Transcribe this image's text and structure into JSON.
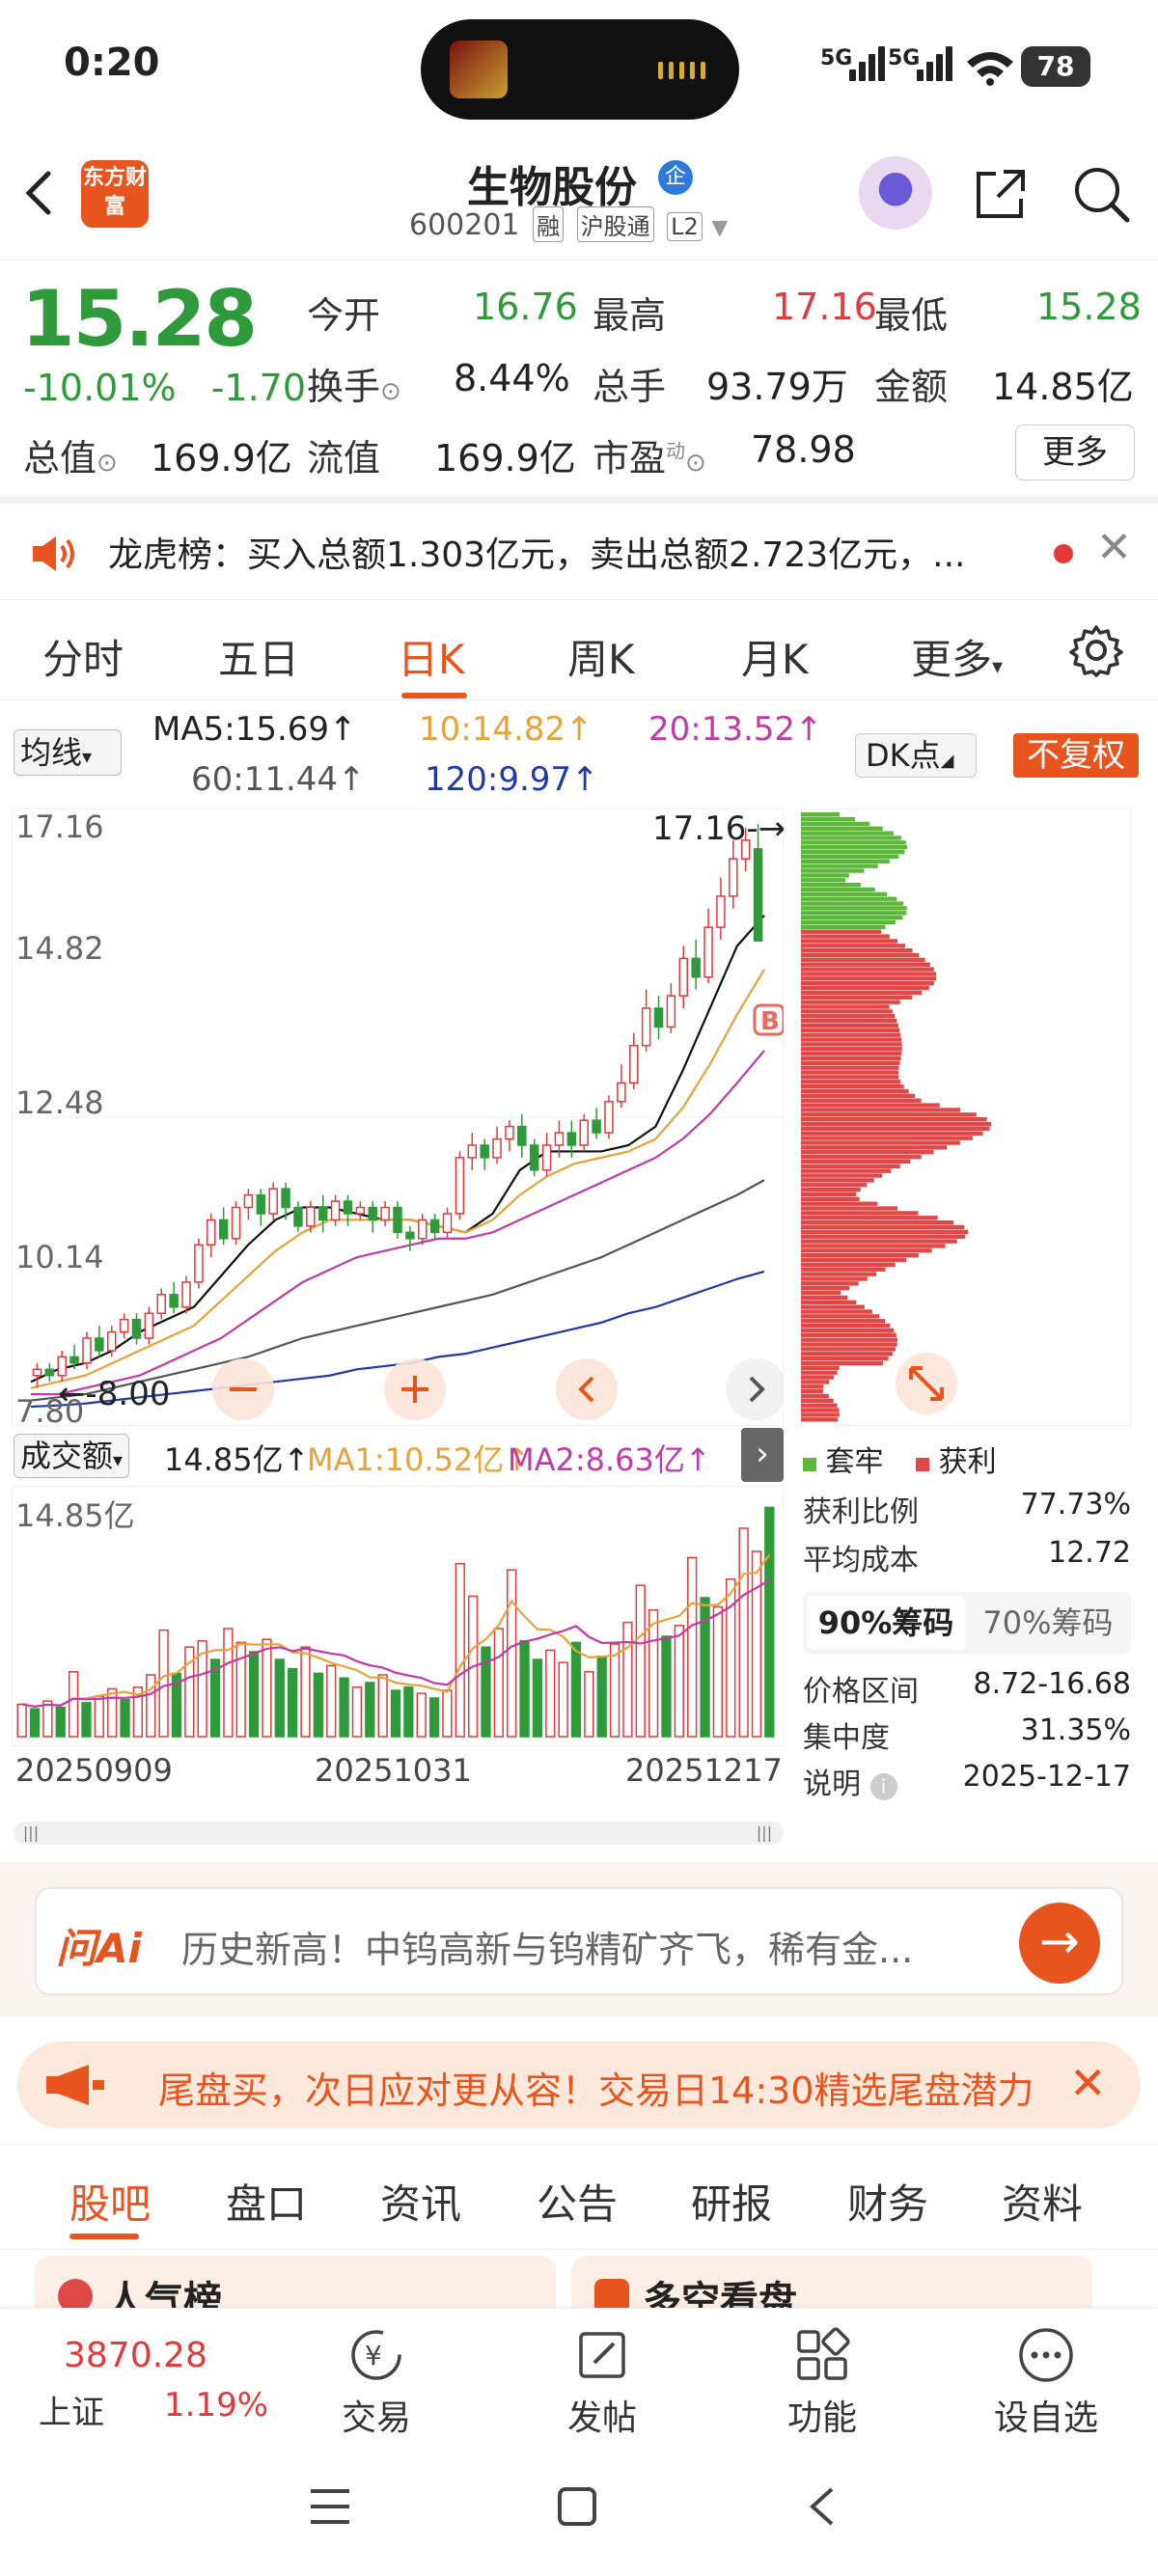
{
  "status_bar": {
    "time": "0:20",
    "signal1": "5G",
    "signal2": "5G",
    "battery": "78"
  },
  "header": {
    "app_logo": "东方财富",
    "stock_name": "生物股份",
    "stock_badge": "企",
    "code": "600201",
    "tags": [
      "融",
      "沪股通",
      "L2"
    ]
  },
  "quote": {
    "price": "15.28",
    "change_pct": "-10.01%",
    "change": "-1.70",
    "rows": [
      [
        {
          "l": "今开",
          "v": "16.76",
          "c": "green"
        },
        {
          "l": "最高",
          "v": "17.16",
          "c": "red"
        },
        {
          "l": "最低",
          "v": "15.28",
          "c": "green"
        }
      ],
      [
        {
          "l": "换手",
          "v": "8.44%",
          "c": "black"
        },
        {
          "l": "总手",
          "v": "93.79万",
          "c": "black"
        },
        {
          "l": "金额",
          "v": "14.85亿",
          "c": "black"
        }
      ],
      [
        {
          "l": "总值",
          "v": "169.9亿",
          "c": "black"
        },
        {
          "l": "流值",
          "v": "169.9亿",
          "c": "black"
        },
        {
          "l": "市盈",
          "sup": "动",
          "v": "78.98",
          "c": "black"
        }
      ]
    ],
    "more_label": "更多"
  },
  "notice": {
    "text": "龙虎榜：买入总额1.303亿元，卖出总额2.723亿元，..."
  },
  "kline_tabs": {
    "items": [
      "分时",
      "五日",
      "日K",
      "周K",
      "月K",
      "更多"
    ],
    "active": 2
  },
  "ma": {
    "avg_label": "均线",
    "ma5": "MA5:15.69↑",
    "ma10": "10:14.82↑",
    "ma20": "20:13.52↑",
    "ma60": "60:11.44↑",
    "ma120": "120:9.97↑",
    "dk_label": "DK点",
    "adjust_label": "不复权"
  },
  "colors": {
    "up": "#e23a3a",
    "down": "#2f9a3a",
    "ma5": "#111111",
    "ma10": "#e8a23a",
    "ma20": "#c23aa8",
    "ma60": "#555555",
    "ma120": "#1e3aa8",
    "accent": "#e8541e"
  },
  "chart_data": [
    {
      "type": "candlestick",
      "y_ticks": [
        "17.16",
        "14.82",
        "12.48",
        "10.14",
        "7.80"
      ],
      "ylim": [
        7.8,
        17.16
      ],
      "annotations": {
        "high_label": "17.16",
        "low_label": "8.00",
        "marker": "B"
      },
      "candles": [
        [
          8.3,
          8.4,
          8.1,
          8.5
        ],
        [
          8.4,
          8.3,
          8.2,
          8.5
        ],
        [
          8.3,
          8.6,
          8.2,
          8.7
        ],
        [
          8.6,
          8.5,
          8.4,
          8.8
        ],
        [
          8.5,
          8.9,
          8.4,
          9.0
        ],
        [
          8.9,
          8.7,
          8.6,
          9.1
        ],
        [
          8.7,
          9.0,
          8.6,
          9.1
        ],
        [
          9.0,
          9.2,
          8.9,
          9.3
        ],
        [
          9.2,
          8.9,
          8.8,
          9.3
        ],
        [
          8.9,
          9.3,
          8.8,
          9.4
        ],
        [
          9.3,
          9.6,
          9.2,
          9.7
        ],
        [
          9.6,
          9.4,
          9.3,
          9.8
        ],
        [
          9.4,
          9.8,
          9.3,
          9.9
        ],
        [
          9.8,
          10.4,
          9.7,
          10.5
        ],
        [
          10.4,
          10.8,
          10.2,
          10.9
        ],
        [
          10.8,
          10.5,
          10.4,
          11.0
        ],
        [
          10.5,
          11.0,
          10.4,
          11.1
        ],
        [
          11.0,
          11.2,
          10.8,
          11.3
        ],
        [
          11.2,
          10.9,
          10.7,
          11.3
        ],
        [
          10.9,
          11.3,
          10.8,
          11.4
        ],
        [
          11.3,
          11.0,
          10.8,
          11.4
        ],
        [
          11.0,
          10.7,
          10.6,
          11.1
        ],
        [
          10.7,
          11.0,
          10.6,
          11.1
        ],
        [
          11.0,
          10.8,
          10.6,
          11.2
        ],
        [
          10.8,
          11.1,
          10.7,
          11.2
        ],
        [
          11.1,
          10.9,
          10.7,
          11.2
        ],
        [
          10.9,
          11.0,
          10.8,
          11.1
        ],
        [
          11.0,
          10.8,
          10.6,
          11.1
        ],
        [
          10.8,
          11.0,
          10.7,
          11.1
        ],
        [
          11.0,
          10.6,
          10.5,
          11.1
        ],
        [
          10.6,
          10.5,
          10.3,
          10.7
        ],
        [
          10.5,
          10.8,
          10.4,
          10.9
        ],
        [
          10.8,
          10.6,
          10.5,
          10.9
        ],
        [
          10.6,
          10.9,
          10.5,
          11.0
        ],
        [
          10.9,
          11.8,
          10.8,
          11.9
        ],
        [
          11.8,
          12.0,
          11.6,
          12.2
        ],
        [
          12.0,
          11.8,
          11.6,
          12.1
        ],
        [
          11.8,
          12.1,
          11.7,
          12.3
        ],
        [
          12.1,
          12.3,
          11.9,
          12.4
        ],
        [
          12.3,
          12.0,
          11.8,
          12.5
        ],
        [
          12.0,
          11.6,
          11.5,
          12.1
        ],
        [
          11.6,
          12.0,
          11.5,
          12.2
        ],
        [
          12.0,
          12.2,
          11.8,
          12.4
        ],
        [
          12.2,
          12.0,
          11.8,
          12.4
        ],
        [
          12.0,
          12.4,
          11.9,
          12.5
        ],
        [
          12.4,
          12.2,
          12.1,
          12.6
        ],
        [
          12.2,
          12.7,
          12.1,
          12.8
        ],
        [
          12.7,
          13.0,
          12.6,
          13.3
        ],
        [
          13.0,
          13.6,
          12.9,
          13.8
        ],
        [
          13.6,
          14.2,
          13.5,
          14.5
        ],
        [
          14.2,
          13.9,
          13.7,
          14.4
        ],
        [
          13.9,
          14.4,
          13.8,
          14.6
        ],
        [
          14.4,
          15.0,
          14.2,
          15.2
        ],
        [
          15.0,
          14.7,
          14.5,
          15.3
        ],
        [
          14.7,
          15.5,
          14.6,
          15.8
        ],
        [
          15.5,
          16.0,
          15.3,
          16.3
        ],
        [
          16.0,
          16.6,
          15.8,
          16.9
        ],
        [
          16.6,
          16.9,
          16.4,
          17.1
        ],
        [
          16.76,
          15.28,
          15.28,
          17.16
        ]
      ],
      "ma_series": {
        "MA5": [
          8.2,
          8.4,
          8.5,
          8.7,
          9.0,
          9.2,
          9.4,
          9.9,
          10.4,
          10.8,
          11.0,
          11.0,
          10.9,
          10.8,
          10.8,
          10.7,
          10.6,
          10.9,
          11.6,
          11.9,
          11.9,
          11.9,
          12.0,
          12.3,
          13.2,
          14.2,
          15.2,
          15.69
        ],
        "MA10": [
          8.1,
          8.2,
          8.3,
          8.5,
          8.7,
          8.9,
          9.1,
          9.5,
          9.9,
          10.3,
          10.6,
          10.8,
          10.8,
          10.8,
          10.8,
          10.7,
          10.6,
          10.8,
          11.2,
          11.5,
          11.7,
          11.8,
          11.9,
          12.1,
          12.6,
          13.3,
          14.1,
          14.82
        ],
        "MA20": [
          8.0,
          8.0,
          8.1,
          8.2,
          8.3,
          8.5,
          8.7,
          8.9,
          9.2,
          9.5,
          9.8,
          10.0,
          10.2,
          10.3,
          10.4,
          10.5,
          10.5,
          10.6,
          10.8,
          11.0,
          11.2,
          11.4,
          11.6,
          11.8,
          12.1,
          12.5,
          13.0,
          13.52
        ],
        "MA60": [
          7.9,
          7.95,
          8.0,
          8.1,
          8.2,
          8.3,
          8.4,
          8.5,
          8.6,
          8.75,
          8.9,
          9.0,
          9.1,
          9.2,
          9.3,
          9.4,
          9.5,
          9.6,
          9.75,
          9.9,
          10.05,
          10.2,
          10.4,
          10.6,
          10.8,
          11.0,
          11.2,
          11.44
        ],
        "MA120": [
          7.8,
          7.82,
          7.85,
          7.9,
          7.95,
          8.0,
          8.05,
          8.1,
          8.15,
          8.2,
          8.25,
          8.3,
          8.4,
          8.45,
          8.5,
          8.6,
          8.65,
          8.75,
          8.85,
          8.95,
          9.05,
          9.15,
          9.3,
          9.4,
          9.55,
          9.7,
          9.85,
          9.97
        ]
      }
    },
    {
      "type": "bar",
      "title": "成交额",
      "y_ticks": [
        "14.85亿"
      ],
      "x_ticks": [
        "20250909",
        "20251031",
        "20251217"
      ],
      "values": [
        2.1,
        1.8,
        2.3,
        1.9,
        4.2,
        2.2,
        2.6,
        3.1,
        2.4,
        3.2,
        4.0,
        6.9,
        4.1,
        5.8,
        6.2,
        5.0,
        7.0,
        6.1,
        5.5,
        6.3,
        5.0,
        4.4,
        5.8,
        4.1,
        4.6,
        3.8,
        3.2,
        3.5,
        4.0,
        3.0,
        3.2,
        2.8,
        2.5,
        3.0,
        11.2,
        9.1,
        5.8,
        7.0,
        10.8,
        6.2,
        5.0,
        5.6,
        4.8,
        6.1,
        4.2,
        5.2,
        6.0,
        7.4,
        9.8,
        8.2,
        6.5,
        7.2,
        11.6,
        9.0,
        8.4,
        10.2,
        13.5,
        12.0,
        14.85
      ],
      "up": [
        1,
        0,
        1,
        0,
        1,
        0,
        1,
        1,
        0,
        1,
        1,
        1,
        0,
        1,
        1,
        0,
        1,
        1,
        0,
        1,
        0,
        0,
        1,
        0,
        1,
        0,
        1,
        0,
        1,
        0,
        0,
        1,
        0,
        1,
        1,
        1,
        0,
        1,
        1,
        0,
        0,
        1,
        1,
        0,
        1,
        0,
        1,
        1,
        1,
        1,
        0,
        1,
        1,
        0,
        1,
        1,
        1,
        1,
        0
      ],
      "ma1": {
        "label": "MA1:10.52亿↑"
      },
      "ma2": {
        "label": "MA2:8.63亿↑"
      }
    },
    {
      "type": "distribution",
      "legend": [
        "套牢",
        "获利"
      ],
      "legend_colors": [
        "#5cb83a",
        "#e04848"
      ]
    }
  ],
  "volume": {
    "title": "成交额",
    "value": "14.85亿↑",
    "ma1": "MA1:10.52亿↑",
    "ma2": "MA2:8.63亿↑",
    "y_label": "14.85亿",
    "dates": [
      "20250909",
      "20251031",
      "20251217"
    ]
  },
  "dist_info": {
    "legend_trapped": "套牢",
    "legend_profit": "获利",
    "profit_ratio_label": "获利比例",
    "profit_ratio": "77.73%",
    "avg_cost_label": "平均成本",
    "avg_cost": "12.72",
    "chip90": "90%筹码",
    "chip70": "70%筹码",
    "range_label": "价格区间",
    "range": "8.72-16.68",
    "conc_label": "集中度",
    "conc": "31.35%",
    "note_label": "说明",
    "note": "2025-12-17"
  },
  "ai": {
    "brand": "问Ai",
    "text": "历史新高！中钨高新与钨精矿齐飞，稀有金..."
  },
  "banner": {
    "text": "尾盘买，次日应对更从容！交易日14:30精选尾盘潜力"
  },
  "bottom_tabs": {
    "items": [
      "股吧",
      "盘口",
      "资讯",
      "公告",
      "研报",
      "财务",
      "资料"
    ],
    "active": 0
  },
  "cards": [
    "人气榜",
    "多空看盘"
  ],
  "footer": {
    "index_value": "3870.28",
    "index_name": "上证",
    "index_pct": "1.19%",
    "items": [
      "交易",
      "发帖",
      "功能",
      "设自选"
    ]
  }
}
